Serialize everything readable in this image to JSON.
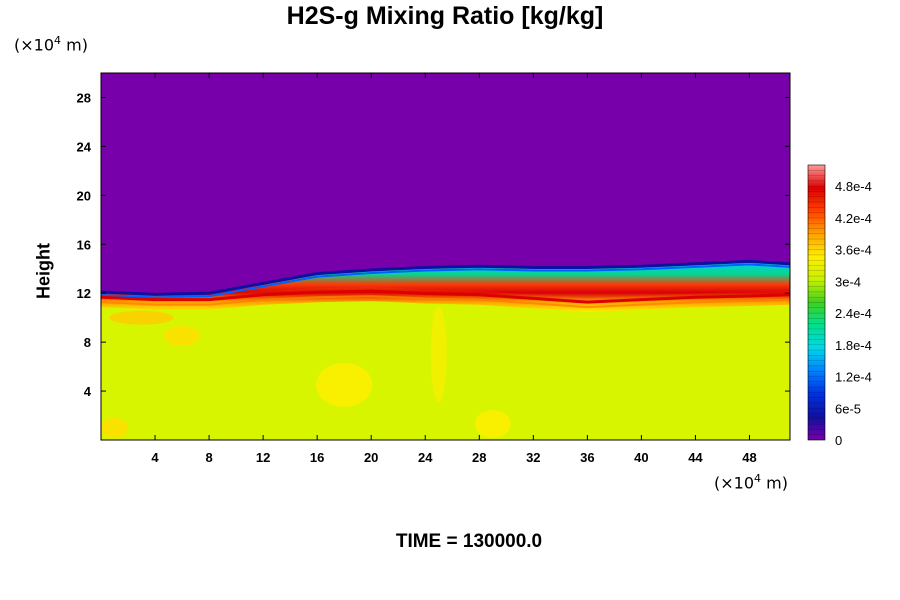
{
  "chart_data": {
    "type": "heatmap",
    "title": "H2S-g Mixing Ratio [kg/kg]",
    "ylabel": "Height",
    "xlabel": "",
    "y_unit": {
      "prefix": "(×10",
      "exp": "4",
      "suffix": " m)"
    },
    "x_unit": {
      "prefix": "(×10",
      "exp": "4",
      "suffix": " m)"
    },
    "footer": "TIME = 130000.0",
    "xlim": [
      0,
      51
    ],
    "ylim": [
      0,
      30
    ],
    "x_ticks": [
      4,
      8,
      12,
      16,
      20,
      24,
      28,
      32,
      36,
      40,
      44,
      48
    ],
    "y_ticks": [
      4,
      8,
      12,
      16,
      20,
      24,
      28
    ],
    "colorbar": {
      "range": [
        0,
        0.00052
      ],
      "labels": [
        "0",
        "6e-5",
        "1.2e-4",
        "1.8e-4",
        "2.4e-4",
        "3e-4",
        "3.6e-4",
        "4.2e-4",
        "4.8e-4"
      ],
      "label_values": [
        0,
        6e-05,
        0.00012,
        0.00018,
        0.00024,
        0.0003,
        0.00036,
        0.00042,
        0.00048
      ],
      "stops": [
        "#7700aa",
        "#1010a0",
        "#0030e0",
        "#0080ff",
        "#00d8e8",
        "#00e090",
        "#40d020",
        "#c8f000",
        "#ffee00",
        "#ffa000",
        "#ff4000",
        "#dd0000",
        "#ff9a9a"
      ]
    },
    "fields": {
      "background": "#7700aa",
      "lower_layer_color": "#d8f500",
      "interface_height_profile": [
        {
          "x": 0,
          "y": 12.0
        },
        {
          "x": 4,
          "y": 11.8
        },
        {
          "x": 8,
          "y": 11.8
        },
        {
          "x": 12,
          "y": 12.2
        },
        {
          "x": 16,
          "y": 12.4
        },
        {
          "x": 20,
          "y": 12.5
        },
        {
          "x": 24,
          "y": 12.3
        },
        {
          "x": 28,
          "y": 12.2
        },
        {
          "x": 32,
          "y": 11.9
        },
        {
          "x": 36,
          "y": 11.6
        },
        {
          "x": 40,
          "y": 11.8
        },
        {
          "x": 44,
          "y": 12.0
        },
        {
          "x": 48,
          "y": 12.1
        },
        {
          "x": 51,
          "y": 12.2
        }
      ],
      "mixing_top_profile": [
        {
          "x": 0,
          "y": 12.1
        },
        {
          "x": 4,
          "y": 11.9
        },
        {
          "x": 8,
          "y": 12.0
        },
        {
          "x": 12,
          "y": 12.8
        },
        {
          "x": 16,
          "y": 13.6
        },
        {
          "x": 20,
          "y": 13.9
        },
        {
          "x": 24,
          "y": 14.1
        },
        {
          "x": 28,
          "y": 14.2
        },
        {
          "x": 32,
          "y": 14.1
        },
        {
          "x": 36,
          "y": 14.1
        },
        {
          "x": 40,
          "y": 14.2
        },
        {
          "x": 44,
          "y": 14.4
        },
        {
          "x": 48,
          "y": 14.6
        },
        {
          "x": 51,
          "y": 14.4
        }
      ]
    }
  }
}
